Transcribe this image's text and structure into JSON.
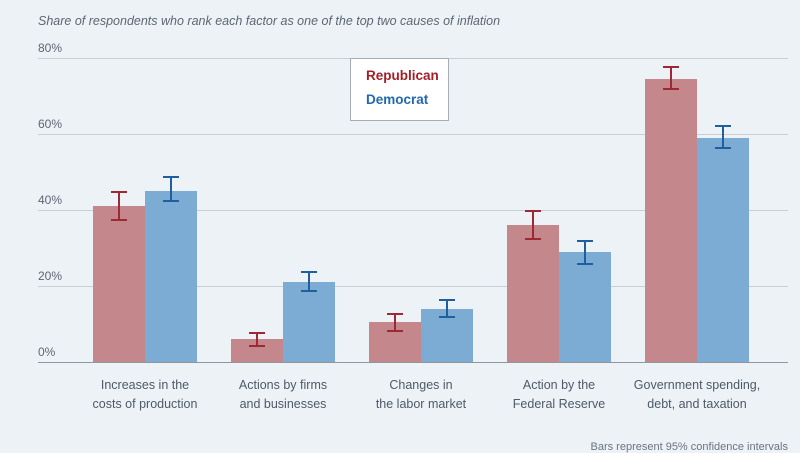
{
  "page": {
    "background": "#edf2f7",
    "caption_bottom": "Bars represent 95% confidence intervals"
  },
  "chart_data": {
    "type": "bar",
    "title": "Share of respondents who rank each factor as one of the top two causes of inflation",
    "categories": [
      "Increases in the\ncosts of production",
      "Actions by firms\nand businesses",
      "Changes in\nthe labor market",
      "Action by the\nFederal Reserve",
      "Government spending,\ndebt, and taxation"
    ],
    "series": [
      {
        "name": "Republican",
        "bar_color": "#c4878c",
        "error_color": "#9e2833",
        "label_color": "#a32026",
        "values": [
          41,
          6,
          10.5,
          36,
          74.5
        ],
        "errors_low": [
          37,
          4,
          8,
          32,
          71.5
        ],
        "errors_high": [
          45,
          8,
          13,
          40,
          78
        ]
      },
      {
        "name": "Democrat",
        "bar_color": "#7cabd3",
        "error_color": "#1f5f9e",
        "label_color": "#2268ae",
        "values": [
          45,
          21,
          14,
          29,
          59
        ],
        "errors_low": [
          42,
          18.5,
          11.5,
          25.5,
          56
        ],
        "errors_high": [
          49,
          24,
          16.5,
          32,
          62.5
        ]
      }
    ],
    "ylim": [
      0,
      80
    ],
    "yticks": [
      0,
      20,
      40,
      60,
      80
    ],
    "ytick_labels": [
      "0%",
      "20%",
      "40%",
      "60%",
      "80%"
    ],
    "grid": true,
    "error_bars": true,
    "legend_position": "top-center",
    "grid_color": "#c9ced4",
    "baseline_color": "#8f969d"
  }
}
